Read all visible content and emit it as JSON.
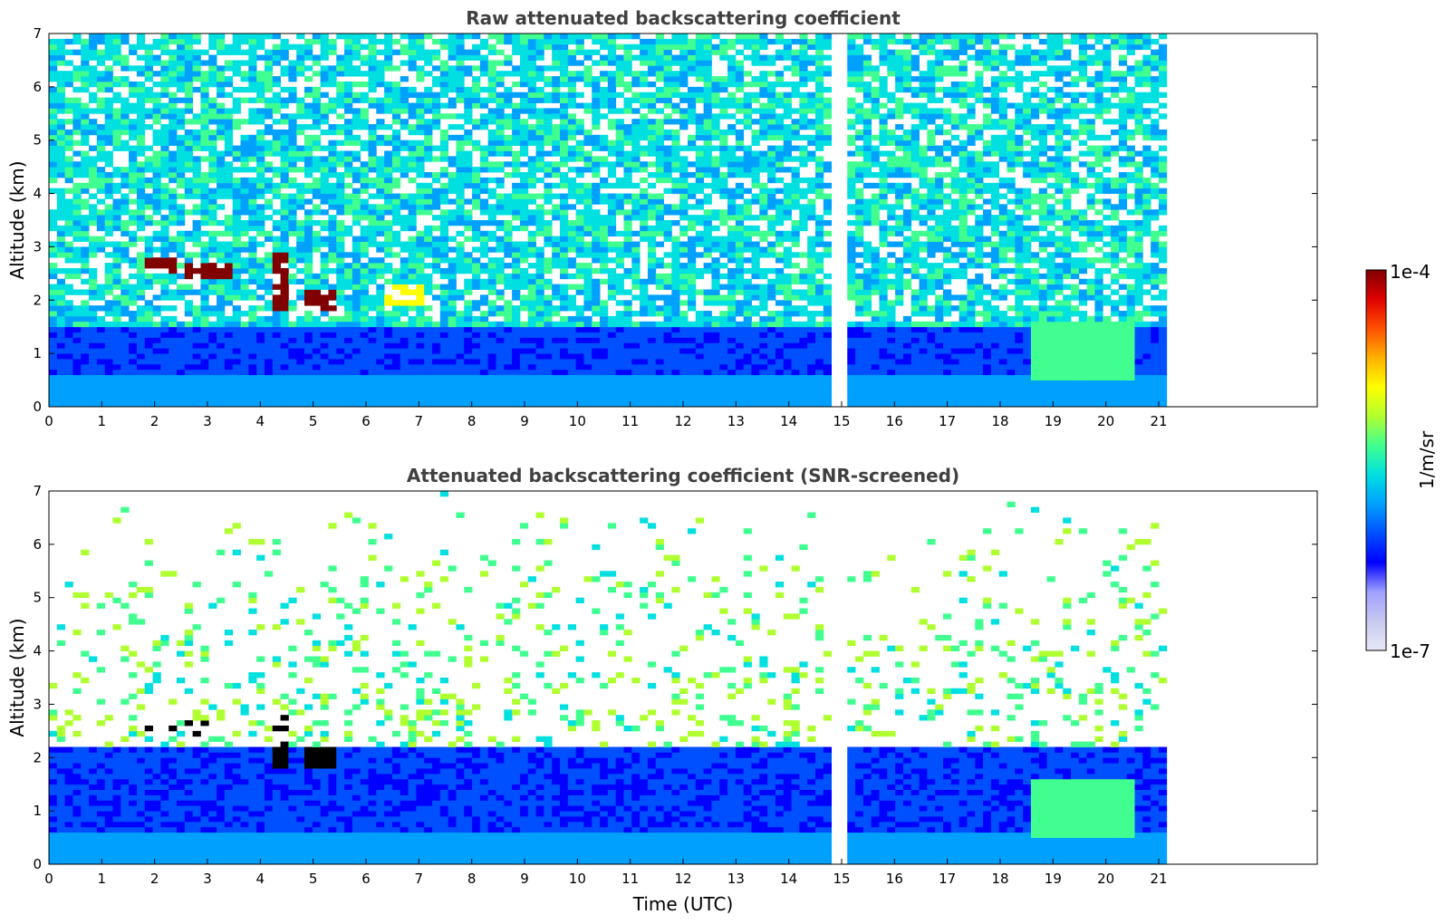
{
  "chart_data": [
    {
      "type": "heatmap",
      "title": "Raw attenuated backscattering coefficient",
      "xlabel": "",
      "ylabel": "Altitude (km)",
      "xlim": [
        0,
        24
      ],
      "ylim": [
        0,
        7
      ],
      "x_ticks": [
        0,
        1,
        2,
        3,
        4,
        5,
        6,
        7,
        8,
        9,
        10,
        11,
        12,
        13,
        14,
        15,
        16,
        17,
        18,
        19,
        20,
        21
      ],
      "y_ticks": [
        0,
        1,
        2,
        3,
        4,
        5,
        6,
        7
      ],
      "data_extent_x": [
        0,
        21.15
      ],
      "data_gaps_x": [
        [
          14.95,
          15.05
        ]
      ],
      "colormap": "jet",
      "color_scale": "log",
      "features": [
        {
          "kind": "surface_layer",
          "x": [
            0,
            21.15
          ],
          "y": [
            0,
            0.6
          ]
        },
        {
          "kind": "boundary_layer",
          "x": [
            0,
            21.15
          ],
          "y": [
            0,
            1.5
          ]
        },
        {
          "kind": "aerosol_layer",
          "x": [
            1.8,
            2.3
          ],
          "y": [
            2.5,
            2.7
          ],
          "level": "high"
        },
        {
          "kind": "aerosol_layer",
          "x": [
            2.5,
            3.4
          ],
          "y": [
            2.4,
            2.6
          ],
          "level": "high"
        },
        {
          "kind": "aerosol_layer",
          "x": [
            4.1,
            4.5
          ],
          "y": [
            1.8,
            2.9
          ],
          "level": "high"
        },
        {
          "kind": "aerosol_layer",
          "x": [
            4.8,
            5.3
          ],
          "y": [
            1.8,
            2.1
          ],
          "level": "high"
        },
        {
          "kind": "aerosol_layer",
          "x": [
            6.3,
            7.0
          ],
          "y": [
            1.9,
            2.2
          ],
          "level": "medium"
        },
        {
          "kind": "plume",
          "x": [
            18.5,
            20.5
          ],
          "y": [
            0.5,
            1.5
          ],
          "level": "medium"
        }
      ]
    },
    {
      "type": "heatmap",
      "title": "Attenuated backscattering coefficient (SNR-screened)",
      "xlabel": "Time (UTC)",
      "ylabel": "Altitude (km)",
      "xlim": [
        0,
        24
      ],
      "ylim": [
        0,
        7
      ],
      "x_ticks": [
        0,
        1,
        2,
        3,
        4,
        5,
        6,
        7,
        8,
        9,
        10,
        11,
        12,
        13,
        14,
        15,
        16,
        17,
        18,
        19,
        20,
        21
      ],
      "y_ticks": [
        0,
        1,
        2,
        3,
        4,
        5,
        6,
        7
      ],
      "data_extent_x": [
        0,
        21.15
      ],
      "data_gaps_x": [
        [
          14.95,
          15.05
        ]
      ],
      "colormap": "jet",
      "color_scale": "log",
      "features": [
        {
          "kind": "surface_layer",
          "x": [
            0,
            21.15
          ],
          "y": [
            0,
            0.6
          ]
        },
        {
          "kind": "boundary_layer",
          "x": [
            0,
            21.15
          ],
          "y": [
            0,
            2.0
          ]
        },
        {
          "kind": "aerosol_layer",
          "x": [
            1.8,
            2.3
          ],
          "y": [
            2.5,
            2.7
          ],
          "level": "saturated"
        },
        {
          "kind": "aerosol_layer",
          "x": [
            2.5,
            3.4
          ],
          "y": [
            2.4,
            2.6
          ],
          "level": "saturated"
        },
        {
          "kind": "aerosol_layer",
          "x": [
            4.1,
            4.5
          ],
          "y": [
            1.8,
            2.9
          ],
          "level": "saturated"
        },
        {
          "kind": "aerosol_layer",
          "x": [
            4.8,
            5.3
          ],
          "y": [
            1.8,
            2.1
          ],
          "level": "saturated"
        },
        {
          "kind": "plume",
          "x": [
            18.5,
            20.5
          ],
          "y": [
            0.5,
            1.5
          ],
          "level": "medium"
        }
      ]
    }
  ],
  "colorbar": {
    "label": "1/m/sr",
    "min_label": "1e-7",
    "max_label": "1e-4",
    "colors": [
      "#e8e8f8",
      "#c8c8f0",
      "#a0a0ff",
      "#0000ff",
      "#0050ff",
      "#00a0ff",
      "#00e0e0",
      "#40ff90",
      "#b0ff30",
      "#ffff00",
      "#ffb000",
      "#ff5000",
      "#e00000",
      "#800000"
    ]
  }
}
